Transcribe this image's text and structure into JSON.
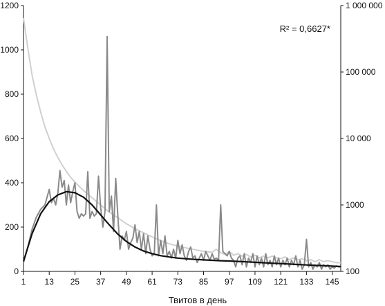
{
  "chart_data": {
    "type": "line",
    "title": "",
    "xlabel": "Твитов в день",
    "ylabel": "",
    "xlim": [
      1,
      149
    ],
    "ylim": [
      0,
      1200
    ],
    "y2lim": [
      100,
      1000000
    ],
    "y2_scale": "log",
    "x_ticks": [
      "1",
      "13",
      "25",
      "37",
      "49",
      "61",
      "73",
      "85",
      "97",
      "109",
      "121",
      "133",
      "145"
    ],
    "y_ticks": [
      "0",
      "200",
      "400",
      "600",
      "800",
      "1000",
      "1200"
    ],
    "y2_ticks": [
      "100",
      "1000",
      "10 000",
      "100 000",
      "1 000 000"
    ],
    "annotation": "R² = 0,6627*",
    "grid": false,
    "legend": "none",
    "series": [
      {
        "axis": "left",
        "color": "#8a8a8a",
        "points": [
          [
            1,
            40
          ],
          [
            3,
            110
          ],
          [
            5,
            190
          ],
          [
            7,
            245
          ],
          [
            9,
            280
          ],
          [
            11,
            300
          ],
          [
            13,
            370
          ],
          [
            14,
            310
          ],
          [
            15,
            330
          ],
          [
            16,
            300
          ],
          [
            17,
            350
          ],
          [
            18,
            455
          ],
          [
            19,
            380
          ],
          [
            20,
            410
          ],
          [
            21,
            300
          ],
          [
            22,
            390
          ],
          [
            23,
            310
          ],
          [
            24,
            360
          ],
          [
            25,
            400
          ],
          [
            26,
            270
          ],
          [
            27,
            240
          ],
          [
            28,
            260
          ],
          [
            29,
            250
          ],
          [
            30,
            260
          ],
          [
            31,
            450
          ],
          [
            32,
            240
          ],
          [
            33,
            270
          ],
          [
            34,
            250
          ],
          [
            35,
            260
          ],
          [
            36,
            430
          ],
          [
            37,
            290
          ],
          [
            38,
            200
          ],
          [
            39,
            270
          ],
          [
            40,
            1060
          ],
          [
            41,
            270
          ],
          [
            42,
            340
          ],
          [
            43,
            180
          ],
          [
            44,
            420
          ],
          [
            45,
            250
          ],
          [
            46,
            100
          ],
          [
            47,
            160
          ],
          [
            48,
            140
          ],
          [
            49,
            180
          ],
          [
            50,
            100
          ],
          [
            51,
            130
          ],
          [
            52,
            150
          ],
          [
            53,
            210
          ],
          [
            54,
            130
          ],
          [
            55,
            180
          ],
          [
            56,
            100
          ],
          [
            57,
            170
          ],
          [
            58,
            80
          ],
          [
            59,
            160
          ],
          [
            60,
            100
          ],
          [
            61,
            70
          ],
          [
            62,
            80
          ],
          [
            63,
            300
          ],
          [
            64,
            70
          ],
          [
            65,
            140
          ],
          [
            66,
            80
          ],
          [
            67,
            160
          ],
          [
            68,
            70
          ],
          [
            69,
            90
          ],
          [
            70,
            60
          ],
          [
            71,
            100
          ],
          [
            72,
            60
          ],
          [
            73,
            140
          ],
          [
            74,
            80
          ],
          [
            75,
            120
          ],
          [
            76,
            70
          ],
          [
            77,
            50
          ],
          [
            78,
            90
          ],
          [
            79,
            110
          ],
          [
            80,
            60
          ],
          [
            81,
            70
          ],
          [
            82,
            40
          ],
          [
            83,
            60
          ],
          [
            84,
            80
          ],
          [
            85,
            50
          ],
          [
            86,
            90
          ],
          [
            87,
            70
          ],
          [
            88,
            50
          ],
          [
            89,
            80
          ],
          [
            90,
            55
          ],
          [
            91,
            60
          ],
          [
            92,
            50
          ],
          [
            93,
            300
          ],
          [
            94,
            90
          ],
          [
            95,
            80
          ],
          [
            96,
            70
          ],
          [
            97,
            90
          ],
          [
            98,
            60
          ],
          [
            99,
            50
          ],
          [
            100,
            20
          ],
          [
            101,
            60
          ],
          [
            102,
            70
          ],
          [
            103,
            30
          ],
          [
            104,
            80
          ],
          [
            105,
            20
          ],
          [
            106,
            60
          ],
          [
            107,
            40
          ],
          [
            108,
            80
          ],
          [
            109,
            20
          ],
          [
            110,
            70
          ],
          [
            111,
            30
          ],
          [
            112,
            60
          ],
          [
            113,
            20
          ],
          [
            114,
            80
          ],
          [
            115,
            30
          ],
          [
            116,
            50
          ],
          [
            117,
            20
          ],
          [
            118,
            70
          ],
          [
            119,
            30
          ],
          [
            120,
            60
          ],
          [
            121,
            20
          ],
          [
            122,
            50
          ],
          [
            123,
            30
          ],
          [
            124,
            60
          ],
          [
            125,
            20
          ],
          [
            126,
            50
          ],
          [
            127,
            30
          ],
          [
            128,
            70
          ],
          [
            129,
            20
          ],
          [
            130,
            50
          ],
          [
            131,
            10
          ],
          [
            132,
            30
          ],
          [
            133,
            145
          ],
          [
            134,
            20
          ],
          [
            135,
            40
          ],
          [
            136,
            10
          ],
          [
            137,
            30
          ],
          [
            138,
            20
          ],
          [
            139,
            40
          ],
          [
            140,
            10
          ],
          [
            141,
            30
          ],
          [
            142,
            20
          ],
          [
            143,
            30
          ],
          [
            144,
            10
          ],
          [
            145,
            20
          ],
          [
            146,
            15
          ],
          [
            147,
            25
          ],
          [
            148,
            20
          ],
          [
            149,
            20
          ]
        ]
      },
      {
        "axis": "left",
        "color": "#111111",
        "points": [
          [
            1,
            45
          ],
          [
            5,
            170
          ],
          [
            9,
            260
          ],
          [
            13,
            315
          ],
          [
            17,
            345
          ],
          [
            21,
            360
          ],
          [
            25,
            355
          ],
          [
            29,
            335
          ],
          [
            33,
            300
          ],
          [
            37,
            255
          ],
          [
            41,
            210
          ],
          [
            45,
            168
          ],
          [
            49,
            135
          ],
          [
            53,
            110
          ],
          [
            57,
            92
          ],
          [
            61,
            80
          ],
          [
            65,
            71
          ],
          [
            69,
            65
          ],
          [
            73,
            60
          ],
          [
            77,
            57
          ],
          [
            81,
            54
          ],
          [
            85,
            52
          ],
          [
            89,
            50
          ],
          [
            93,
            48
          ],
          [
            97,
            47
          ],
          [
            101,
            45
          ],
          [
            105,
            43
          ],
          [
            109,
            41
          ],
          [
            113,
            39
          ],
          [
            117,
            37
          ],
          [
            121,
            35
          ],
          [
            125,
            33
          ],
          [
            129,
            31
          ],
          [
            133,
            29
          ],
          [
            137,
            27
          ],
          [
            141,
            26
          ],
          [
            145,
            24
          ],
          [
            149,
            22
          ]
        ]
      },
      {
        "axis": "right",
        "color": "#d0d0d0",
        "points": [
          [
            1,
            650000
          ],
          [
            3,
            230000
          ],
          [
            5,
            90000
          ],
          [
            7,
            45000
          ],
          [
            9,
            25000
          ],
          [
            11,
            15000
          ],
          [
            13,
            10000
          ],
          [
            15,
            7000
          ],
          [
            17,
            5200
          ],
          [
            19,
            4000
          ],
          [
            21,
            3200
          ],
          [
            23,
            2600
          ],
          [
            25,
            2200
          ],
          [
            27,
            1900
          ],
          [
            29,
            1650
          ],
          [
            31,
            1450
          ],
          [
            33,
            1280
          ],
          [
            35,
            1130
          ],
          [
            37,
            1000
          ],
          [
            39,
            880
          ],
          [
            41,
            780
          ],
          [
            45,
            640
          ],
          [
            49,
            520
          ],
          [
            53,
            440
          ],
          [
            57,
            380
          ],
          [
            61,
            330
          ],
          [
            65,
            290
          ],
          [
            69,
            260
          ],
          [
            73,
            240
          ],
          [
            77,
            225
          ],
          [
            81,
            212
          ],
          [
            85,
            200
          ],
          [
            89,
            195
          ],
          [
            91,
            215
          ],
          [
            93,
            190
          ],
          [
            95,
            180
          ],
          [
            97,
            200
          ],
          [
            99,
            175
          ],
          [
            101,
            185
          ],
          [
            103,
            170
          ],
          [
            105,
            180
          ],
          [
            107,
            165
          ],
          [
            109,
            175
          ],
          [
            111,
            160
          ],
          [
            113,
            170
          ],
          [
            115,
            160
          ],
          [
            117,
            170
          ],
          [
            119,
            160
          ],
          [
            121,
            155
          ],
          [
            123,
            165
          ],
          [
            125,
            150
          ],
          [
            127,
            160
          ],
          [
            129,
            150
          ],
          [
            131,
            155
          ],
          [
            133,
            145
          ],
          [
            135,
            150
          ],
          [
            137,
            140
          ],
          [
            139,
            150
          ],
          [
            141,
            140
          ],
          [
            143,
            145
          ],
          [
            145,
            140
          ],
          [
            147,
            135
          ],
          [
            149,
            135
          ]
        ]
      }
    ]
  }
}
